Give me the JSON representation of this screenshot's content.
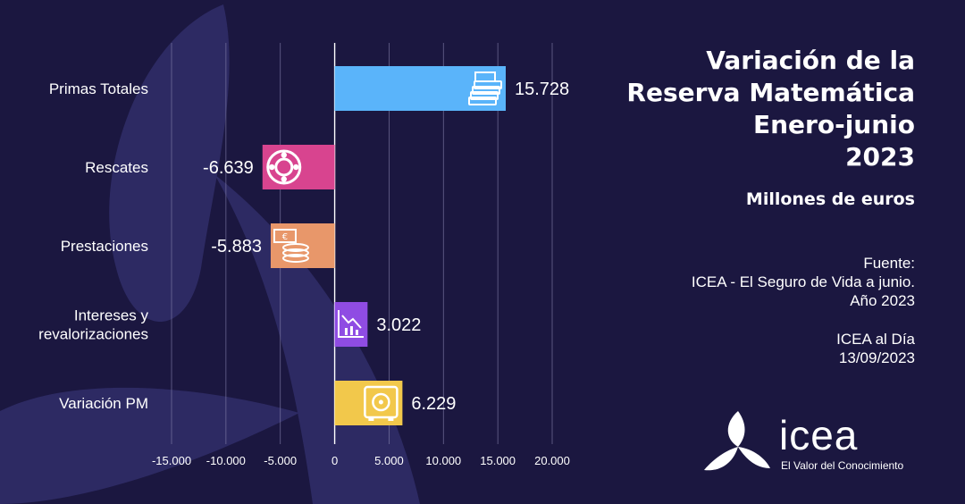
{
  "header": {
    "title_lines": [
      "Variación de la",
      "Reserva Matemática",
      "Enero-junio",
      "2023"
    ],
    "subtitle": "Millones de euros"
  },
  "source": {
    "label": "Fuente:",
    "line1": "ICEA - El Seguro de Vida a junio.",
    "line2": "Año 2023",
    "publication": "ICEA al Día",
    "date": "13/09/2023"
  },
  "logo": {
    "wordmark": "icea",
    "tagline": "El Valor del Conocimiento"
  },
  "chart_data": {
    "type": "bar",
    "orientation": "horizontal",
    "categories": [
      "Primas Totales",
      "Rescates",
      "Prestaciones",
      "Intereses y revalorizaciones",
      "Variación PM"
    ],
    "category_lines": [
      [
        "Primas Totales"
      ],
      [
        "Rescates"
      ],
      [
        "Prestaciones"
      ],
      [
        "Intereses y",
        "revalorizaciones"
      ],
      [
        "Variación PM"
      ]
    ],
    "values": [
      15728,
      -6639,
      -5883,
      3022,
      6229
    ],
    "value_labels": [
      "15.728",
      "-6.639",
      "-5.883",
      "3.022",
      "6.229"
    ],
    "bar_colors": [
      "#5ab4fa",
      "#d8448f",
      "#e8976a",
      "#8f4ce3",
      "#f2c84b"
    ],
    "bar_icons": [
      "money-stack-icon",
      "lifebuoy-icon",
      "cash-coins-icon",
      "declining-chart-icon",
      "safe-icon"
    ],
    "xlim": [
      -15000,
      20000
    ],
    "xticks": [
      -15000,
      -10000,
      -5000,
      0,
      5000,
      10000,
      15000,
      20000
    ],
    "xtick_labels": [
      "-15.000",
      "-10.000",
      "-5.000",
      "0",
      "5.000",
      "10.000",
      "15.000",
      "20.000"
    ],
    "grid": true,
    "title": "",
    "xlabel": "",
    "ylabel": ""
  }
}
